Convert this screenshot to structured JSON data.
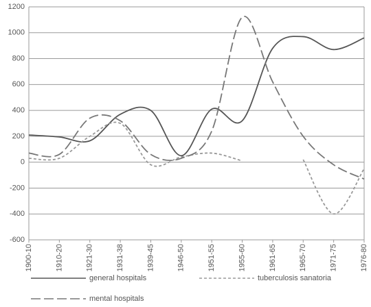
{
  "chart_data": {
    "type": "line",
    "categories": [
      "1900-10",
      "1910-20",
      "1921-30",
      "1931-38",
      "1939-45",
      "1946-50",
      "1951-55",
      "1955-60",
      "1961-65",
      "1965-70",
      "1971-75",
      "1976-80"
    ],
    "series": [
      {
        "name": "general hospitals",
        "color": "#555555",
        "dash": "none",
        "values": [
          210,
          195,
          165,
          370,
          400,
          50,
          410,
          320,
          880,
          970,
          870,
          960
        ]
      },
      {
        "name": "tuberculosis sanatoria",
        "color": "#999999",
        "dash": "4 3",
        "values": [
          30,
          30,
          200,
          300,
          -20,
          40,
          70,
          10,
          null,
          20,
          -400,
          -50
        ]
      },
      {
        "name": "mental hospitals",
        "color": "#777777",
        "dash": "14 5",
        "values": [
          70,
          60,
          340,
          320,
          60,
          30,
          240,
          1120,
          620,
          200,
          -20,
          -130
        ]
      }
    ],
    "ylim": [
      -600,
      1200
    ],
    "yticks": [
      -600,
      -400,
      -200,
      0,
      200,
      400,
      600,
      800,
      1000,
      1200
    ],
    "grid": true
  }
}
